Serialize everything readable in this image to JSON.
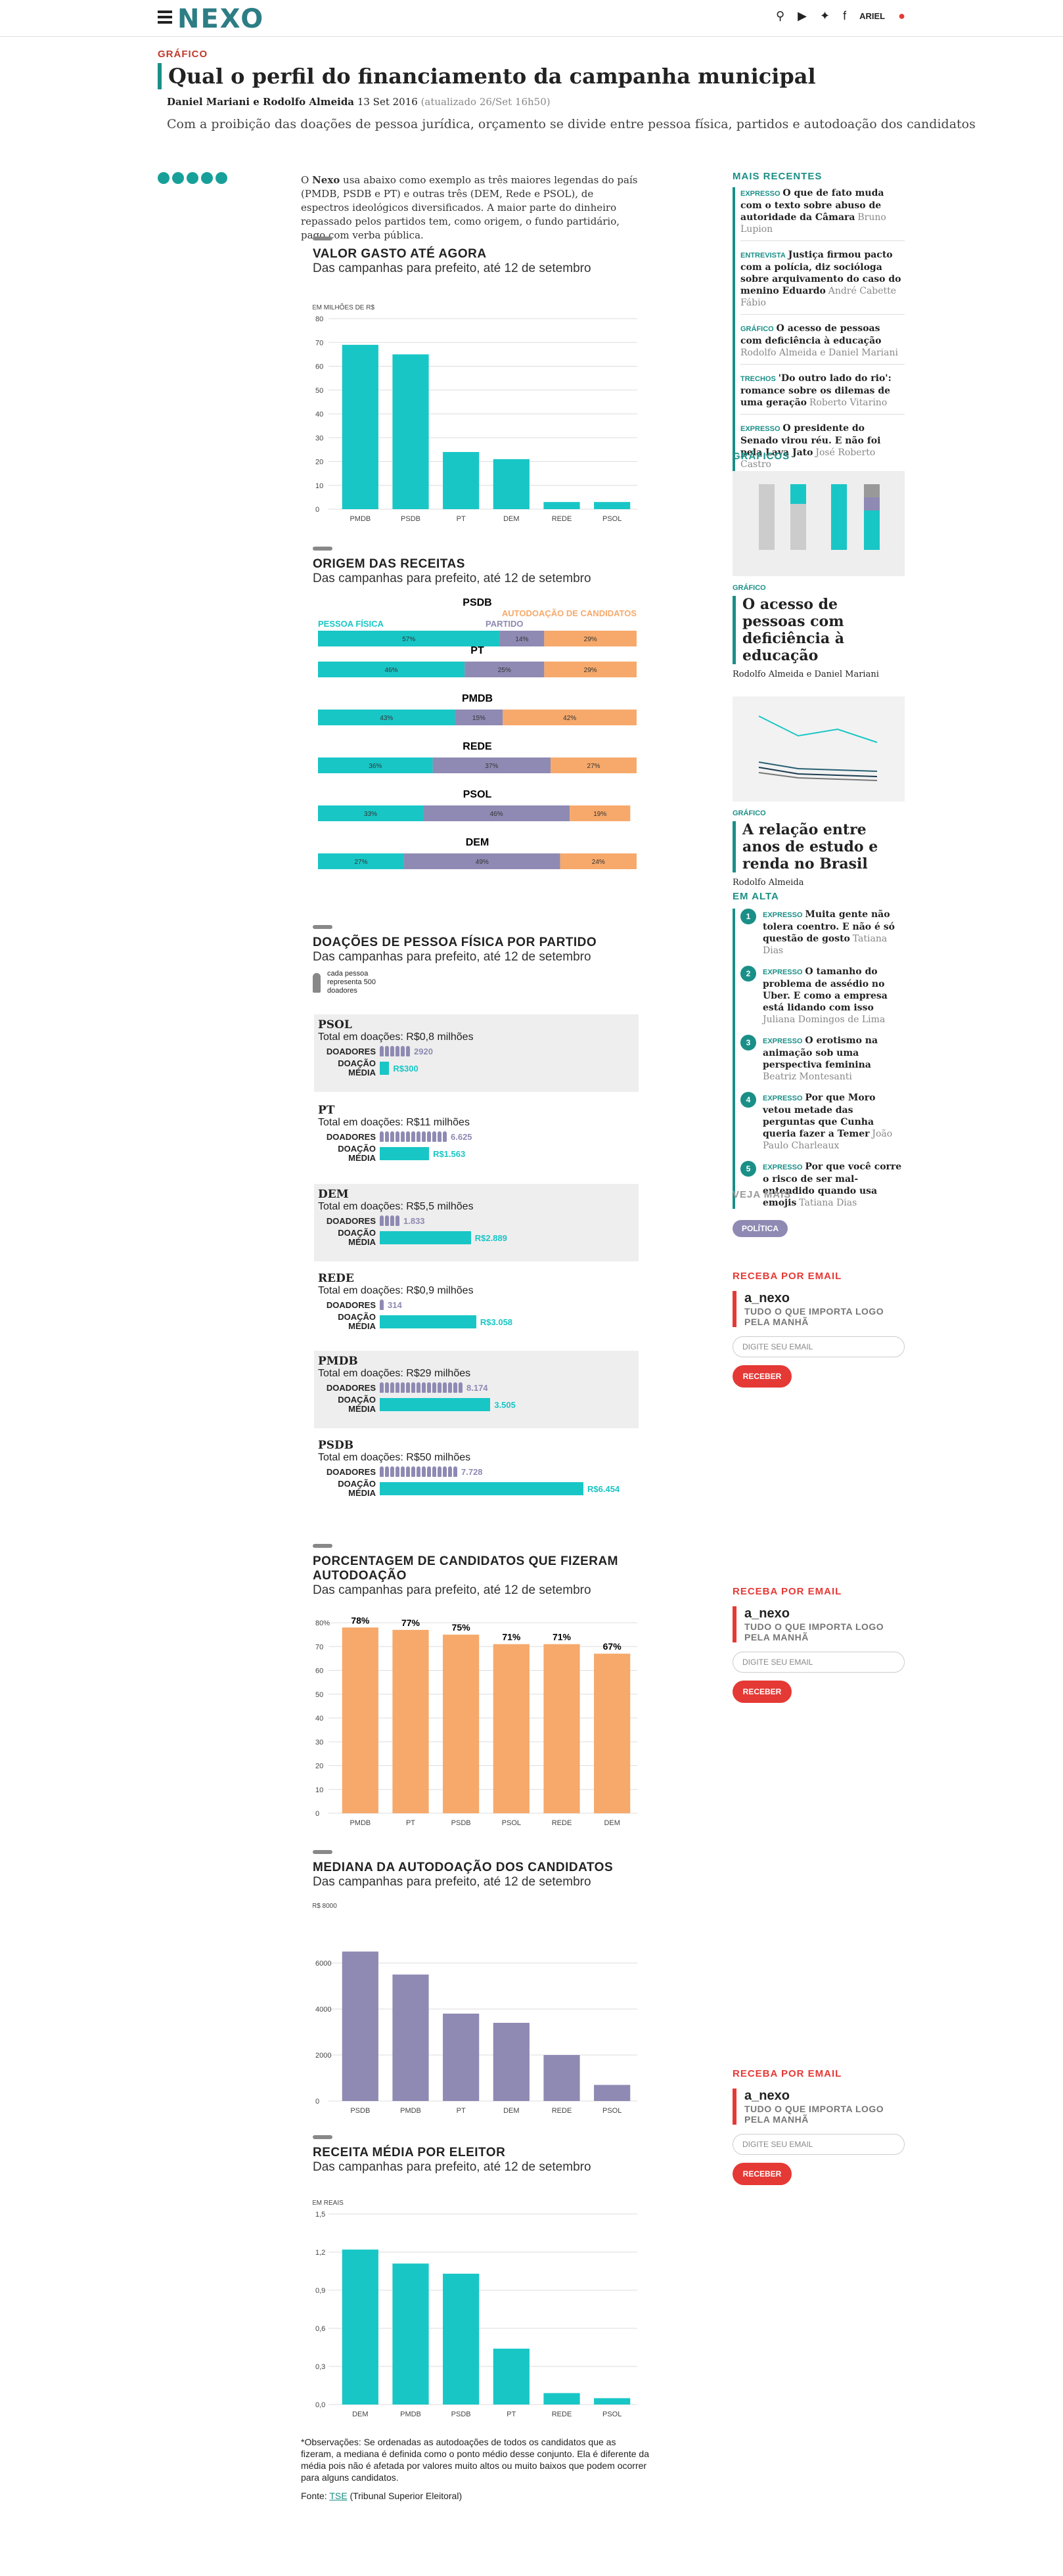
{
  "header": {
    "logo": "NEXO",
    "user": "ARIEL"
  },
  "article": {
    "kicker": "GRÁFICO",
    "title": "Qual o perfil do financiamento da campanha municipal",
    "authors": "Daniel Mariani e Rodolfo Almeida",
    "date": "13 Set 2016",
    "updated": "(atualizado 26/Set 16h50)",
    "subtitle": "Com a proibição das doações de pessoa jurídica, orçamento se divide entre pessoa física, partidos e autodoação dos candidatos",
    "intro_bold": "Nexo",
    "intro_pre": "O ",
    "intro": " usa abaixo como exemplo as três maiores legendas do país (PMDB, PSDB e PT) e outras três (DEM, Rede e PSOL), de espectros ideológicos diversificados. A maior parte do dinheiro repassado pelos partidos tem, como origem, o fundo partidário, pago com verba pública."
  },
  "sections": {
    "s1": {
      "title": "VALOR GASTO ATÉ AGORA",
      "sub": "Das campanhas para prefeito, até 12 de setembro",
      "unit": "EM MILHÕES DE R$"
    },
    "s2": {
      "title": "ORIGEM DAS RECEITAS",
      "sub": "Das campanhas para prefeito, até 12 de setembro",
      "leg_pf": "PESSOA FÍSICA",
      "leg_part": "PARTIDO",
      "leg_auto": "AUTODOAÇÃO DE CANDIDATOS"
    },
    "s3": {
      "title": "DOAÇÕES DE PESSOA FÍSICA POR PARTIDO",
      "sub": "Das campanhas para prefeito, até 12 de setembro",
      "legend": "cada pessoa representa 500 doadores",
      "lab_doadores": "DOADORES",
      "lab_media": "DOAÇÃO MÉDIA"
    },
    "s4": {
      "title": "PORCENTAGEM DE CANDIDATOS QUE FIZERAM AUTODOAÇÃO",
      "sub": "Das campanhas para prefeito, até 12 de setembro"
    },
    "s5": {
      "title": "MEDIANA DA AUTODOAÇÃO DOS CANDIDATOS",
      "sub": "Das campanhas para prefeito, até 12 de setembro",
      "unit": "R$ 8000"
    },
    "s6": {
      "title": "RECEITA MÉDIA POR ELEITOR",
      "sub": "Das campanhas para prefeito, até 12 de setembro",
      "unit": "EM REAIS"
    }
  },
  "chart_data": [
    {
      "type": "bar",
      "categories": [
        "PMDB",
        "PSDB",
        "PT",
        "DEM",
        "REDE",
        "PSOL"
      ],
      "values": [
        69,
        65,
        24,
        21,
        3,
        3
      ],
      "ylim": [
        0,
        80
      ],
      "yticks": [
        0,
        10,
        20,
        30,
        40,
        50,
        60,
        70,
        80
      ],
      "color": "#19c6c6"
    },
    {
      "type": "bar",
      "stacked": true,
      "orientation": "horizontal",
      "categories": [
        "PSDB",
        "PT",
        "PMDB",
        "REDE",
        "PSOL",
        "DEM"
      ],
      "series": [
        {
          "name": "PESSOA FÍSICA",
          "values": [
            57,
            46,
            43,
            36,
            33,
            27
          ]
        },
        {
          "name": "PARTIDO",
          "values": [
            14,
            25,
            15,
            37,
            46,
            49
          ]
        },
        {
          "name": "AUTODOAÇÃO DE CANDIDATOS",
          "values": [
            29,
            29,
            42,
            27,
            19,
            24
          ]
        }
      ],
      "colors": [
        "#19c6c6",
        "#8e8ab3",
        "#f6a96b"
      ]
    },
    {
      "type": "bar",
      "categories": [
        "PSOL",
        "PT",
        "DEM",
        "REDE",
        "PMDB",
        "PSDB"
      ],
      "totals": [
        "Total em doações: R$0,8 milhões",
        "Total em doações: R$11 milhões",
        "Total em doações: R$5,5 milhões",
        "Total em doações: R$0,9 milhões",
        "Total em doações: R$29 milhões",
        "Total em doações: R$50 milhões"
      ],
      "donors": [
        2920,
        6625,
        1833,
        314,
        8174,
        7728
      ],
      "donor_labels": [
        "2920",
        "6.625",
        "1.833",
        "314",
        "8.174",
        "7.728"
      ],
      "avg": [
        300,
        1563,
        2889,
        3058,
        3505,
        6454
      ],
      "avg_labels": [
        "R$300",
        "R$1.563",
        "R$2.889",
        "R$3.058",
        "3.505",
        "R$6.454"
      ]
    },
    {
      "type": "bar",
      "categories": [
        "PMDB",
        "PT",
        "PSDB",
        "PSOL",
        "REDE",
        "DEM"
      ],
      "values": [
        78,
        77,
        75,
        71,
        71,
        67
      ],
      "labels": [
        "78%",
        "77%",
        "75%",
        "71%",
        "71%",
        "67%"
      ],
      "ylim": [
        0,
        80
      ],
      "yticks": [
        "0",
        "10",
        "20",
        "30",
        "40",
        "50",
        "60",
        "70",
        "80%"
      ],
      "color": "#f6a96b"
    },
    {
      "type": "bar",
      "categories": [
        "PSDB",
        "PMDB",
        "PT",
        "DEM",
        "REDE",
        "PSOL"
      ],
      "values": [
        6500,
        5500,
        3800,
        3400,
        2000,
        700
      ],
      "ylim": [
        0,
        8000
      ],
      "yticks": [
        0,
        2000,
        4000,
        6000
      ],
      "color": "#8e8ab3"
    },
    {
      "type": "bar",
      "categories": [
        "DEM",
        "PMDB",
        "PSDB",
        "PT",
        "REDE",
        "PSOL"
      ],
      "values": [
        1.22,
        1.11,
        1.03,
        0.44,
        0.09,
        0.05
      ],
      "ylim": [
        0,
        1.5
      ],
      "yticks": [
        "0,0",
        "0,3",
        "0,6",
        "0,9",
        "1,2",
        "1,5"
      ],
      "color": "#19c6c6"
    }
  ],
  "sidebar": {
    "recent_title": "MAIS RECENTES",
    "recent": [
      {
        "tag": "EXPRESSO",
        "title": "O que de fato muda com o texto sobre abuso de autoridade da Câmara",
        "author": "Bruno Lupion"
      },
      {
        "tag": "ENTREVISTA",
        "title": "Justiça firmou pacto com a polícia, diz socióloga sobre arquivamento do caso do menino Eduardo",
        "author": "André Cabette Fábio"
      },
      {
        "tag": "GRÁFICO",
        "title": "O acesso de pessoas com deficiência à educação",
        "author": "Rodolfo Almeida e Daniel Mariani"
      },
      {
        "tag": "TRECHOS",
        "title": "'Do outro lado do rio': romance sobre os dilemas de uma geração",
        "author": "Roberto Vitarino"
      },
      {
        "tag": "EXPRESSO",
        "title": "O presidente do Senado virou réu. E não foi pela Lava Jato",
        "author": "José Roberto Castro"
      }
    ],
    "graphs_title": "GRÁFICOS",
    "g1_tag": "GRÁFICO",
    "g1_title": "O acesso de pessoas com deficiência à educação",
    "g1_author": "Rodolfo Almeida e Daniel Mariani",
    "g2_tag": "GRÁFICO",
    "g2_title": "A relação entre anos de estudo e renda no Brasil",
    "g2_author": "Rodolfo Almeida",
    "trend_title": "EM ALTA",
    "trend": [
      {
        "n": "1",
        "tag": "EXPRESSO",
        "title": "Muita gente não tolera coentro. E não é só questão de gosto",
        "author": "Tatiana Dias"
      },
      {
        "n": "2",
        "tag": "EXPRESSO",
        "title": "O tamanho do problema de assédio no Uber. E como a empresa está lidando com isso",
        "author": "Juliana Domingos de Lima"
      },
      {
        "n": "3",
        "tag": "EXPRESSO",
        "title": "O erotismo na animação sob uma perspectiva feminina",
        "author": "Beatriz Montesanti"
      },
      {
        "n": "4",
        "tag": "EXPRESSO",
        "title": "Por que Moro vetou metade das perguntas que Cunha queria fazer a Temer",
        "author": "João Paulo Charleaux"
      },
      {
        "n": "5",
        "tag": "EXPRESSO",
        "title": "Por que você corre o risco de ser mal-entendido quando usa emojis",
        "author": "Tatiana Dias"
      }
    ],
    "more_title": "VEJA MAIS",
    "more_tag": "POLÍTICA",
    "nl_title": "RECEBA POR EMAIL",
    "nl_brand": "a_nexo",
    "nl_tagline": "TUDO O QUE IMPORTA LOGO PELA MANHÃ",
    "nl_placeholder": "DIGITE SEU EMAIL",
    "nl_button": "RECEBER"
  },
  "footer": {
    "obs": "*Observações: Se ordenadas as autodoações de todos os candidatos que as fizeram, a mediana é definida como o ponto médio desse conjunto. Ela é diferente da média pois não é afetada por valores muito altos ou muito baixos que podem ocorrer para alguns candidatos.",
    "source_pre": "Fonte: ",
    "source_link": "TSE",
    "source_post": " (Tribunal Superior Eleitoral)"
  }
}
